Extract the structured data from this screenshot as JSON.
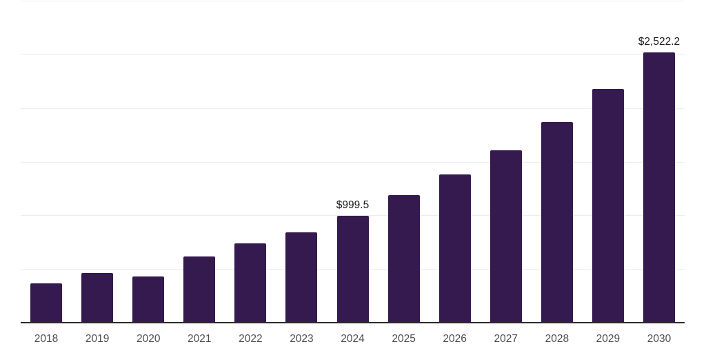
{
  "chart_data": {
    "type": "bar",
    "title": "",
    "xlabel": "",
    "ylabel": "",
    "categories": [
      "2018",
      "2019",
      "2020",
      "2021",
      "2022",
      "2023",
      "2024",
      "2025",
      "2026",
      "2027",
      "2028",
      "2029",
      "2030"
    ],
    "values": [
      370,
      470,
      436,
      624,
      743,
      846,
      999.5,
      1192,
      1386,
      1610,
      1873,
      2185,
      2522.2
    ],
    "bar_labels": [
      "",
      "",
      "",
      "",
      "",
      "",
      "$999.5",
      "",
      "",
      "",
      "",
      "",
      "$2,522.2"
    ],
    "ylim": [
      0,
      3000
    ],
    "gridline_step": 500,
    "grid": true,
    "legend": false,
    "y_axis_labels_visible": false,
    "colors": {
      "bar": "#351a50",
      "axis": "#2b2b2b",
      "gridline": "#ededed",
      "x_tick_label": "#4d4d4d",
      "data_label": "#1a1a1a",
      "background": "#ffffff"
    }
  }
}
